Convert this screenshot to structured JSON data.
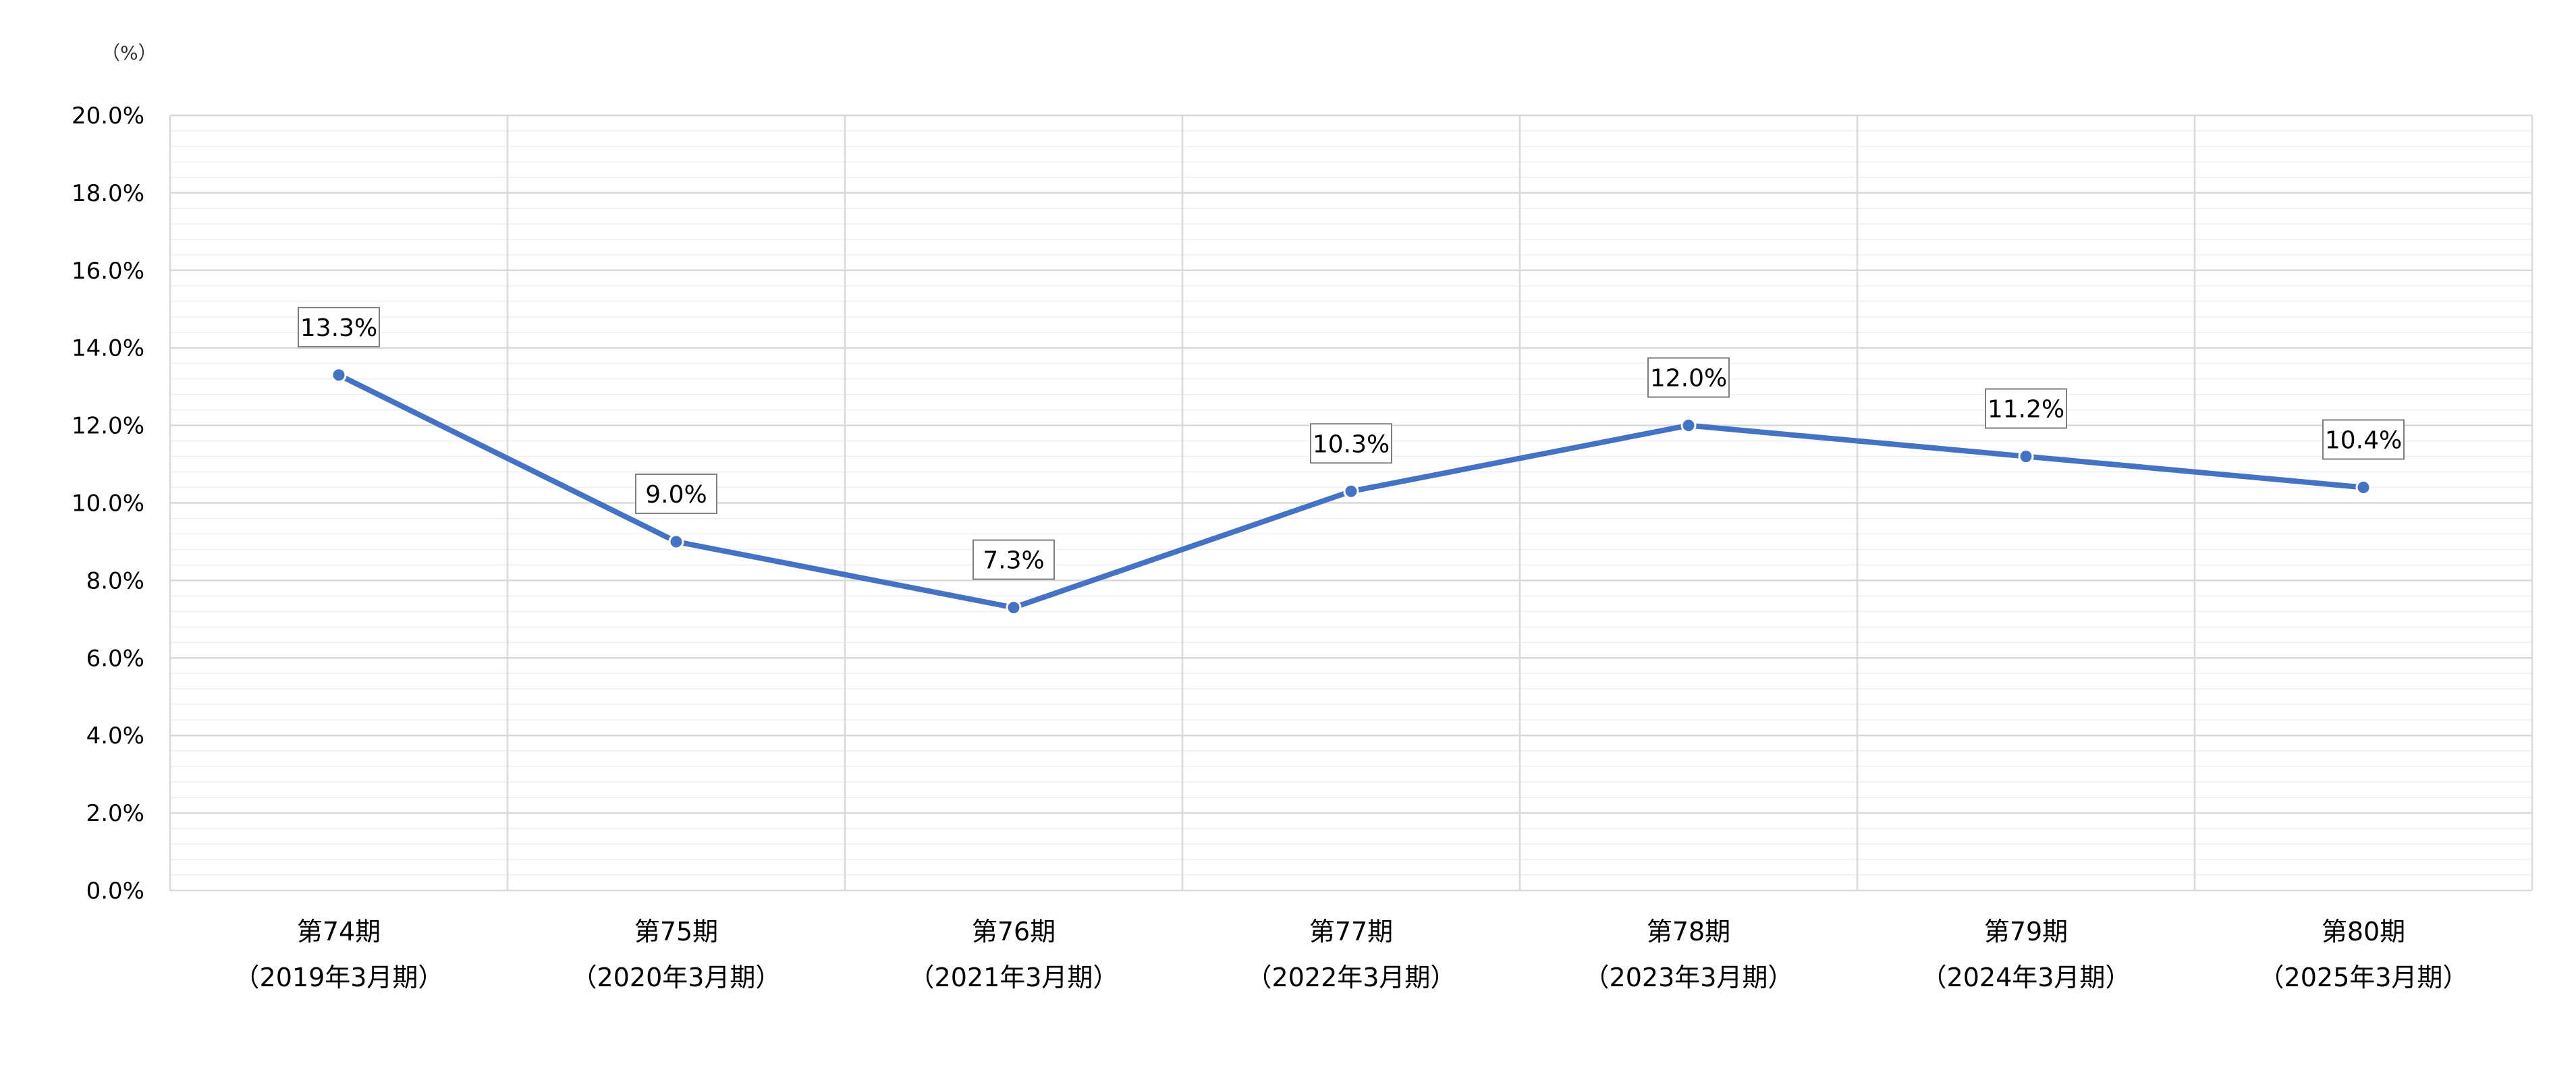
{
  "chart_data": {
    "type": "line",
    "unit_label": "（%）",
    "categories": [
      [
        "第74期",
        "（2019年3月期）"
      ],
      [
        "第75期",
        "（2020年3月期）"
      ],
      [
        "第76期",
        "（2021年3月期）"
      ],
      [
        "第77期",
        "（2022年3月期）"
      ],
      [
        "第78期",
        "（2023年3月期）"
      ],
      [
        "第79期",
        "（2024年3月期）"
      ],
      [
        "第80期",
        "（2025年3月期）"
      ]
    ],
    "series": [
      {
        "values": [
          13.3,
          9.0,
          7.3,
          10.3,
          12.0,
          11.2,
          10.4
        ],
        "data_labels": [
          "13.3%",
          "9.0%",
          "7.3%",
          "10.3%",
          "12.0%",
          "11.2%",
          "10.4%"
        ],
        "color": "#4472C4"
      }
    ],
    "ylim": [
      0,
      20
    ],
    "y_ticks": [
      "0.0%",
      "2.0%",
      "4.0%",
      "6.0%",
      "8.0%",
      "10.0%",
      "12.0%",
      "14.0%",
      "16.0%",
      "18.0%",
      "20.0%"
    ],
    "y_tick_values": [
      0,
      2,
      4,
      6,
      8,
      10,
      12,
      14,
      16,
      18,
      20
    ],
    "minor_step": 0.4,
    "grid": true,
    "legend": "none",
    "colors": {
      "line": "#4472C4",
      "major_grid": "#d9d9d9",
      "minor_grid": "#efefef",
      "label_border": "#7f7f7f"
    }
  }
}
